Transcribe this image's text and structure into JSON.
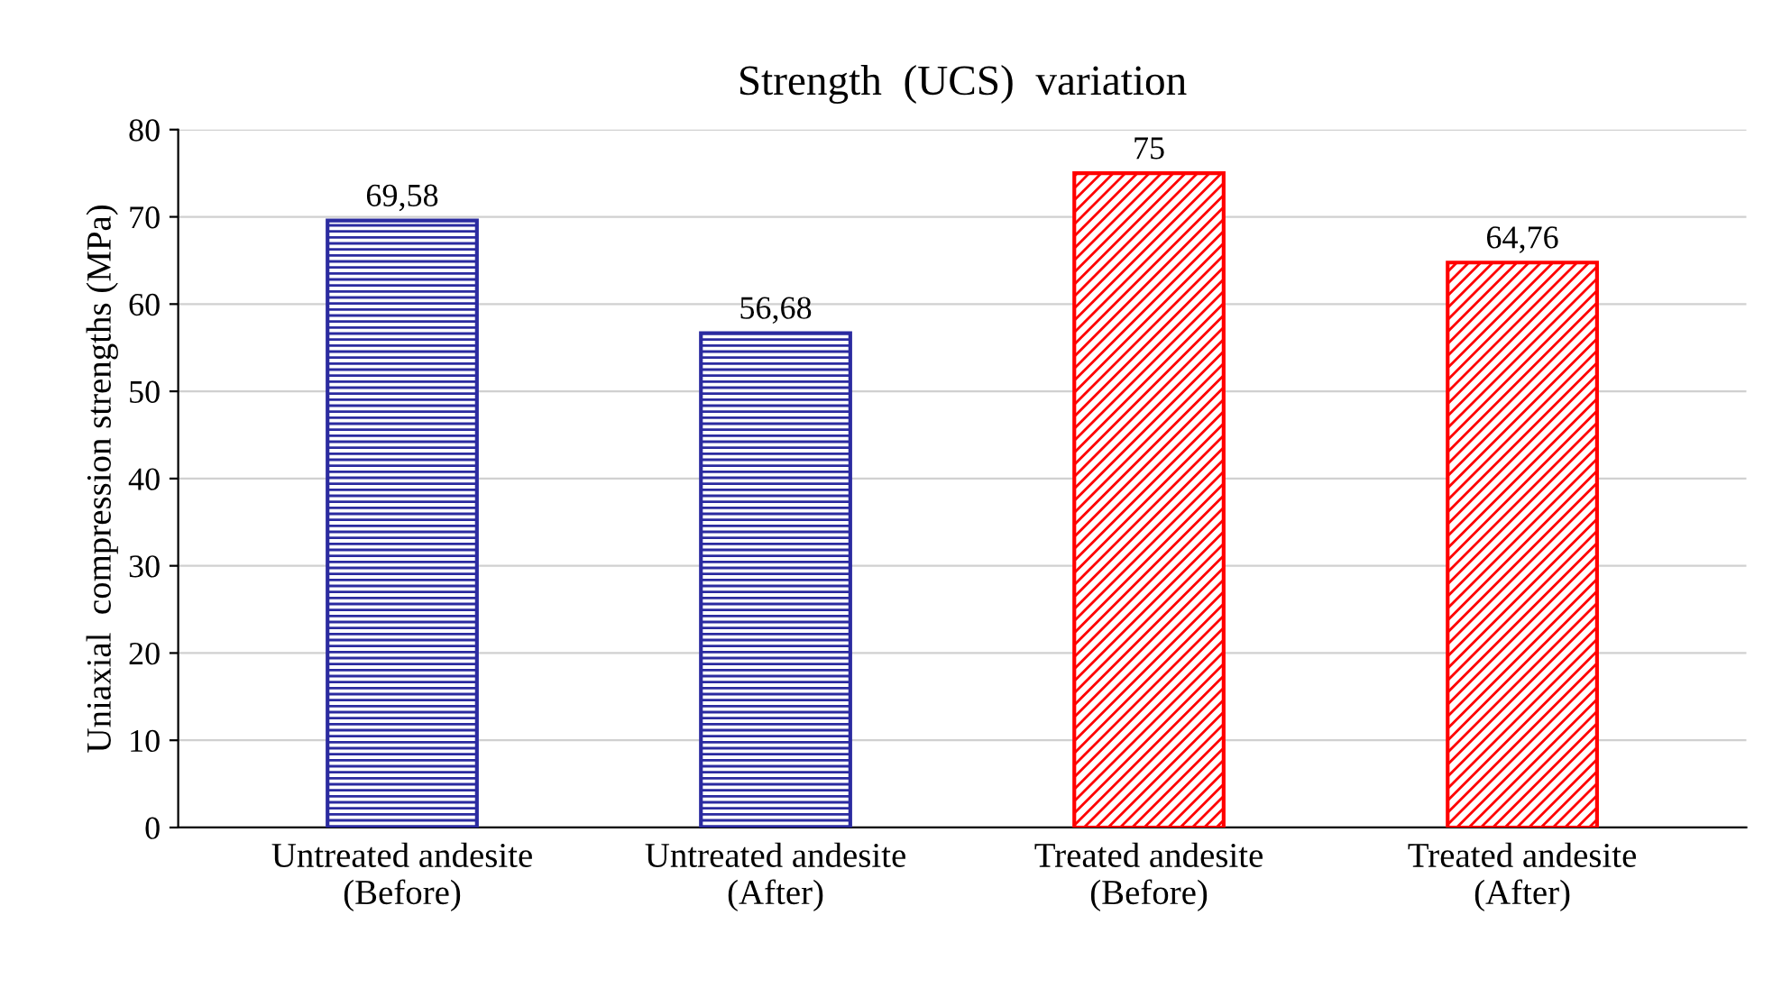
{
  "chart_data": {
    "type": "bar",
    "title": "Strength  (UCS)  variation",
    "ylabel": "Uniaxial  compression strengths (MPa)",
    "categories": [
      "Untreated andesite\n(Before)",
      "Untreated andesite\n(After)",
      "Treated andesite\n(Before)",
      "Treated andesite\n(After)"
    ],
    "values": [
      69.58,
      56.68,
      75,
      64.76
    ],
    "value_labels": [
      "69,58",
      "56,68",
      "75",
      "64,76"
    ],
    "colors": [
      "#2b2ba0",
      "#2b2ba0",
      "#ff0000",
      "#ff0000"
    ],
    "ylim": [
      0,
      80
    ],
    "yticks": [
      0,
      10,
      20,
      30,
      40,
      50,
      60,
      70,
      80
    ],
    "grid": "y",
    "legend": false
  }
}
